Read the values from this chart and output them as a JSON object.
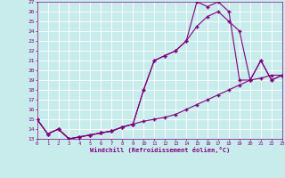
{
  "xlabel": "Windchill (Refroidissement éolien,°C)",
  "background_color": "#c8ecec",
  "line_color": "#800080",
  "grid_color": "#ffffff",
  "x_hours": [
    0,
    1,
    2,
    3,
    4,
    5,
    6,
    7,
    8,
    9,
    10,
    11,
    12,
    13,
    14,
    15,
    16,
    17,
    18,
    19,
    20,
    21,
    22,
    23
  ],
  "line1": [
    15,
    13.5,
    14,
    13,
    13.2,
    13.4,
    13.6,
    13.8,
    14.2,
    14.5,
    14.8,
    15,
    15.2,
    15.5,
    16,
    16.5,
    17,
    17.5,
    18,
    18.5,
    19,
    19.2,
    19.5,
    19.5
  ],
  "line2": [
    15,
    13.5,
    14,
    13,
    13.2,
    13.4,
    13.6,
    13.8,
    14.2,
    14.5,
    18,
    21,
    21.5,
    22,
    23,
    24.5,
    25.5,
    26,
    25,
    24,
    19,
    21,
    19,
    19.5
  ],
  "line3": [
    15,
    13.5,
    14,
    13,
    13.2,
    13.4,
    13.6,
    13.8,
    14.2,
    14.5,
    18,
    21,
    21.5,
    22,
    23,
    27,
    26.5,
    27,
    26,
    19,
    19,
    21,
    19,
    19.5
  ],
  "xlim": [
    0,
    23
  ],
  "ylim": [
    13,
    27
  ],
  "yticks": [
    13,
    14,
    15,
    16,
    17,
    18,
    19,
    20,
    21,
    22,
    23,
    24,
    25,
    26,
    27
  ],
  "xticks": [
    0,
    1,
    2,
    3,
    4,
    5,
    6,
    7,
    8,
    9,
    10,
    11,
    12,
    13,
    14,
    15,
    16,
    17,
    18,
    19,
    20,
    21,
    22,
    23
  ],
  "marker": "+",
  "markersize": 3,
  "linewidth": 0.8
}
